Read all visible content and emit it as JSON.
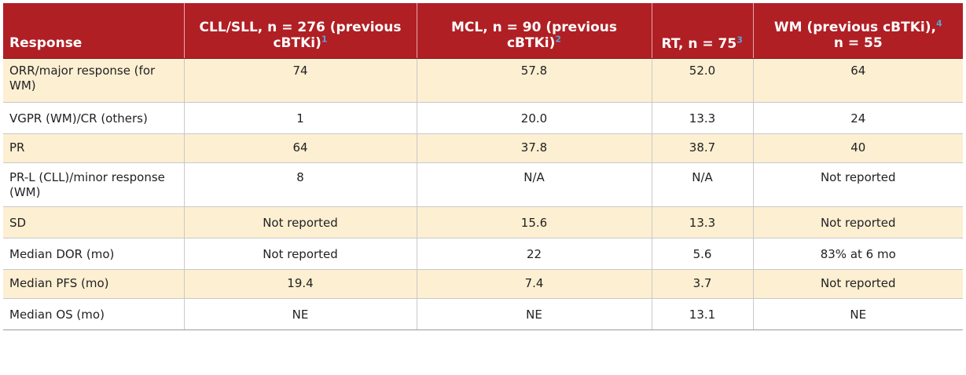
{
  "table": {
    "headers": [
      {
        "text": "Response",
        "sup": ""
      },
      {
        "text": "CLL/SLL, n = 276 (previous cBTKi)",
        "sup": "1"
      },
      {
        "text": "MCL, n = 90 (previous cBTKi)",
        "sup": "2"
      },
      {
        "text": "RT, n = 75",
        "sup": "3"
      },
      {
        "text": "WM (previous cBTKi), n = 55",
        "sup": "4"
      }
    ],
    "header_parts": {
      "h4_line1": "WM (previous cBTKi),",
      "h4_line2": "n = 55"
    },
    "rows": [
      {
        "label": "ORR/major response (for WM)",
        "cells": [
          "74",
          "57.8",
          "52.0",
          "64"
        ]
      },
      {
        "label": "VGPR (WM)/CR (others)",
        "cells": [
          "1",
          "20.0",
          "13.3",
          "24"
        ]
      },
      {
        "label": "PR",
        "cells": [
          "64",
          "37.8",
          "38.7",
          "40"
        ]
      },
      {
        "label": "PR-L (CLL)/minor response (WM)",
        "cells": [
          "8",
          "N/A",
          "N/A",
          "Not reported"
        ]
      },
      {
        "label": "SD",
        "cells": [
          "Not reported",
          "15.6",
          "13.3",
          "Not reported"
        ]
      },
      {
        "label": "Median DOR (mo)",
        "cells": [
          "Not reported",
          "22",
          "5.6",
          "83% at 6 mo"
        ]
      },
      {
        "label": "Median PFS (mo)",
        "cells": [
          "19.4",
          "7.4",
          "3.7",
          "Not reported"
        ]
      },
      {
        "label": "Median OS (mo)",
        "cells": [
          "NE",
          "NE",
          "13.1",
          "NE"
        ]
      }
    ]
  },
  "colors": {
    "header_bg": "#b01f24",
    "header_text": "#ffffff",
    "shaded_row": "#fdefd2",
    "superscript": "#5aa3d8"
  }
}
